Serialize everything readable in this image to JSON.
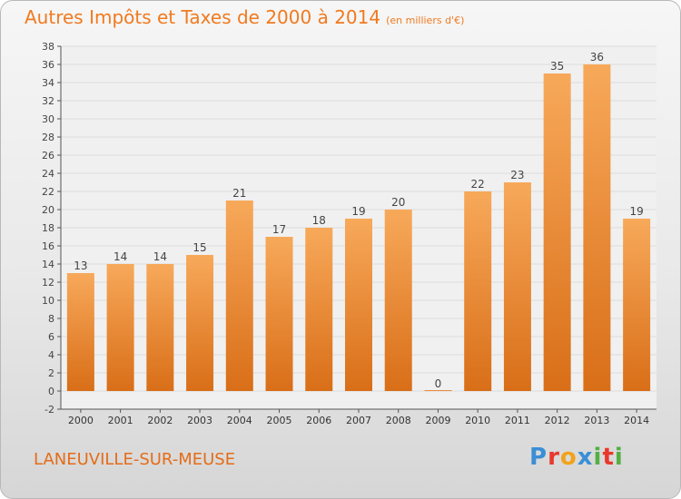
{
  "header": {
    "title": "Autres Impôts et Taxes de 2000 à 2014",
    "subtitle": "(en milliers d'€)"
  },
  "footer": {
    "commune": "LANEUVILLE-SUR-MEUSE",
    "logo_text": "Proxiti",
    "logo_letters": [
      {
        "char": "P",
        "color": "#3a8fd6"
      },
      {
        "char": "r",
        "color": "#e8392b"
      },
      {
        "char": "o",
        "color": "#f2a21b"
      },
      {
        "char": "x",
        "color": "#3a8fd6"
      },
      {
        "char": "i",
        "color": "#52b043"
      },
      {
        "char": "t",
        "color": "#e8392b"
      },
      {
        "char": "i",
        "color": "#52b043"
      }
    ]
  },
  "colors": {
    "bar_top": "#f7a95a",
    "bar_bottom": "#d96e18",
    "title": "#f07a1f",
    "grid": "#dddddd"
  },
  "chart_data": {
    "type": "bar",
    "title": "Autres Impôts et Taxes de 2000 à 2014",
    "subtitle": "(en milliers d'€)",
    "categories": [
      "2000",
      "2001",
      "2002",
      "2003",
      "2004",
      "2005",
      "2006",
      "2007",
      "2008",
      "2009",
      "2010",
      "2011",
      "2012",
      "2013",
      "2014"
    ],
    "values": [
      13,
      14,
      14,
      15,
      21,
      17,
      18,
      19,
      20,
      0,
      22,
      23,
      35,
      36,
      19
    ],
    "ylim": [
      -2,
      38
    ],
    "yticks": [
      -2,
      0,
      2,
      4,
      6,
      8,
      10,
      12,
      14,
      16,
      18,
      20,
      22,
      24,
      26,
      28,
      30,
      32,
      34,
      36,
      38
    ],
    "grid": true,
    "data_labels": true
  }
}
